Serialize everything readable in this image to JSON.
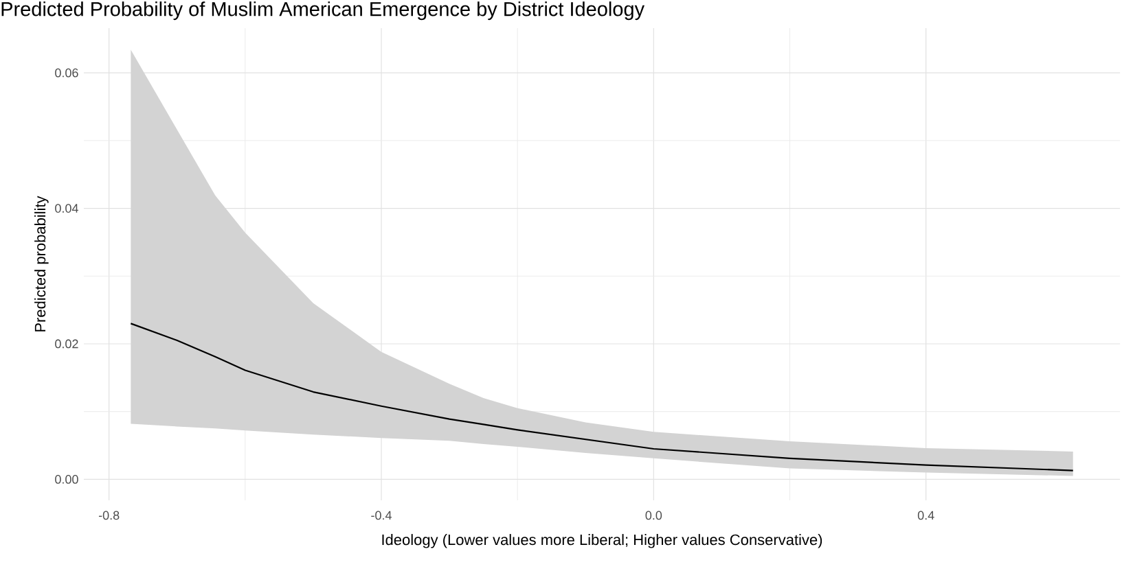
{
  "chart_data": {
    "type": "line",
    "title": "Predicted Probability of Muslim American Emergence by District Ideology",
    "xlabel": "Ideology (Lower values more Liberal; Higher values Conservative)",
    "ylabel": "Predicted probability",
    "x": [
      -0.768,
      -0.7,
      -0.644,
      -0.6,
      -0.5,
      -0.4,
      -0.3,
      -0.25,
      -0.2,
      -0.1,
      0.0,
      0.2,
      0.4,
      0.616
    ],
    "series": [
      {
        "color": "#000000",
        "values": [
          0.023,
          0.0205,
          0.0181,
          0.0161,
          0.0129,
          0.0108,
          0.0089,
          0.0081,
          0.0073,
          0.0059,
          0.0045,
          0.0031,
          0.0021,
          0.0013
        ],
        "upper": [
          0.0634,
          0.0516,
          0.0419,
          0.0364,
          0.026,
          0.0188,
          0.0141,
          0.012,
          0.0105,
          0.0084,
          0.007,
          0.0056,
          0.0046,
          0.0041
        ],
        "lower": [
          0.0082,
          0.0078,
          0.0075,
          0.0072,
          0.0066,
          0.0061,
          0.0057,
          0.0052,
          0.0048,
          0.0039,
          0.0031,
          0.0016,
          0.001,
          0.0005
        ]
      }
    ],
    "xlim": [
      -0.837,
      0.685
    ],
    "ylim": [
      -0.0031,
      0.0666
    ],
    "xticks": [
      -0.8,
      -0.4,
      {
        "value": 0,
        "label": "0.0"
      },
      0.4
    ],
    "yticks": [
      {
        "value": 0,
        "label": "0.00"
      },
      {
        "value": 0.02,
        "label": "0.02"
      },
      {
        "value": 0.04,
        "label": "0.04"
      },
      {
        "value": 0.06,
        "label": "0.06"
      }
    ],
    "grid": true,
    "marker": "none",
    "line_style": "solid"
  }
}
